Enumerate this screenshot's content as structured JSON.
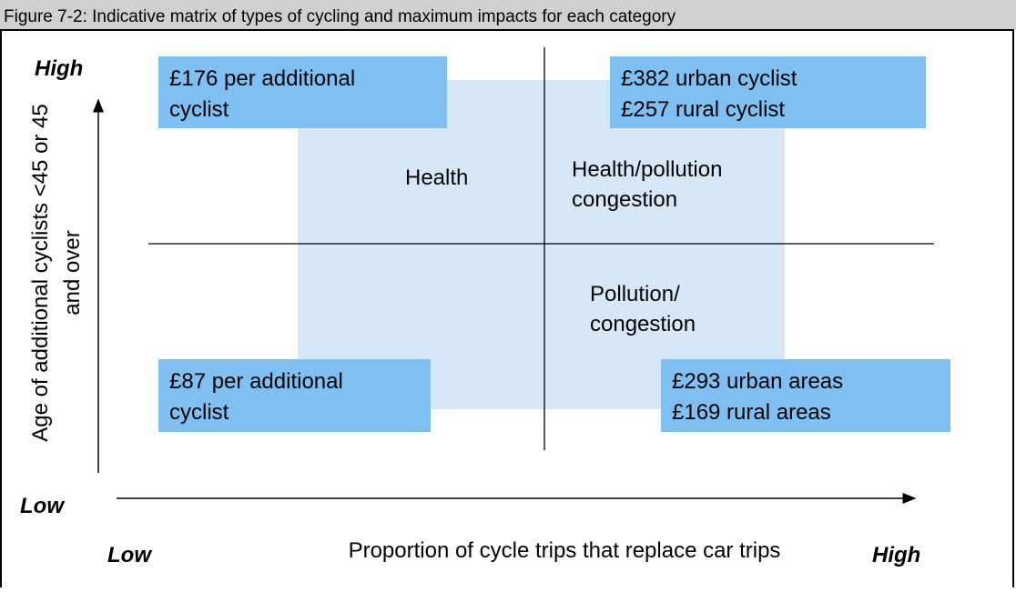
{
  "caption": "Figure 7-2: Indicative matrix of types of cycling and maximum impacts for each category",
  "y_axis": {
    "high": "High",
    "low": "Low",
    "label": [
      "Age of additional cyclists <45 or 45",
      "and over"
    ]
  },
  "x_axis": {
    "low": "Low",
    "high": "High",
    "label": "Proportion of cycle trips that replace car trips"
  },
  "quadrants": [
    {
      "lines": [
        "Health"
      ]
    },
    {
      "lines": [
        "Health/pollution",
        "congestion"
      ]
    },
    {
      "lines": [
        "Pollution/",
        "congestion"
      ]
    }
  ],
  "boxes": [
    {
      "lines": [
        "£176 per additional",
        "cyclist"
      ]
    },
    {
      "lines": [
        "£382 urban cyclist",
        "£257 rural cyclist"
      ]
    },
    {
      "lines": [
        "£87 per additional",
        "cyclist"
      ]
    },
    {
      "lines": [
        "£293 urban areas",
        "£169 rural areas"
      ]
    }
  ]
}
